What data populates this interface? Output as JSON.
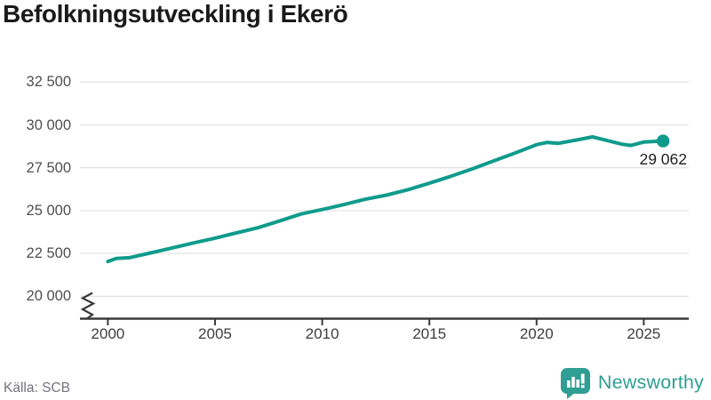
{
  "header": {
    "title": "Befolkningsutveckling i Ekerö"
  },
  "chart_data": {
    "type": "line",
    "title": "Befolkningsutveckling i Ekerö",
    "xlabel": "",
    "ylabel": "",
    "grid": "horizontal",
    "legend": "none",
    "axis_break_at_bottom": true,
    "xlim": [
      1998.7,
      2027.1
    ],
    "ylim": [
      20000,
      32500
    ],
    "x_ticks": [
      {
        "value": 2000,
        "label": "2000"
      },
      {
        "value": 2005,
        "label": "2005"
      },
      {
        "value": 2010,
        "label": "2010"
      },
      {
        "value": 2015,
        "label": "2015"
      },
      {
        "value": 2020,
        "label": "2020"
      },
      {
        "value": 2025,
        "label": "2025"
      }
    ],
    "y_ticks": [
      {
        "value": 20000,
        "label": "20 000"
      },
      {
        "value": 22500,
        "label": "22 500"
      },
      {
        "value": 25000,
        "label": "25 000"
      },
      {
        "value": 27500,
        "label": "27 500"
      },
      {
        "value": 30000,
        "label": "30 000"
      },
      {
        "value": 32500,
        "label": "32 500"
      }
    ],
    "series": [
      {
        "name": "population",
        "points": [
          [
            2000,
            22030
          ],
          [
            2000.4,
            22210
          ],
          [
            2001,
            22250
          ],
          [
            2002,
            22530
          ],
          [
            2003,
            22820
          ],
          [
            2004,
            23110
          ],
          [
            2005,
            23390
          ],
          [
            2006,
            23700
          ],
          [
            2007,
            24000
          ],
          [
            2008,
            24390
          ],
          [
            2009,
            24800
          ],
          [
            2010,
            25060
          ],
          [
            2011,
            25350
          ],
          [
            2012,
            25660
          ],
          [
            2013,
            25900
          ],
          [
            2014,
            26220
          ],
          [
            2015,
            26600
          ],
          [
            2016,
            27000
          ],
          [
            2017,
            27430
          ],
          [
            2018,
            27900
          ],
          [
            2019,
            28360
          ],
          [
            2020,
            28850
          ],
          [
            2020.5,
            28980
          ],
          [
            2021,
            28920
          ],
          [
            2022,
            29150
          ],
          [
            2022.6,
            29300
          ],
          [
            2023,
            29180
          ],
          [
            2024,
            28870
          ],
          [
            2024.4,
            28800
          ],
          [
            2025,
            29000
          ],
          [
            2025.9,
            29062
          ]
        ]
      }
    ],
    "end_value": 29062,
    "end_label": "29 062"
  },
  "footer": {
    "source_label": "Källa: SCB",
    "brand_name": "Newsworthy"
  },
  "colors": {
    "line": "#0f9b8c",
    "end_dot": "#0f9b8c",
    "grid": "#e4e4e4",
    "axis": "#3a3a3a",
    "title": "#1a1a1a",
    "y_tick_label": "#4f4f4f",
    "x_tick_label": "#3d3d3d",
    "annotation": "#1f1f1f",
    "source_text": "#73737b",
    "brand_teal": "#2f9e94",
    "background": "#ffffff"
  }
}
